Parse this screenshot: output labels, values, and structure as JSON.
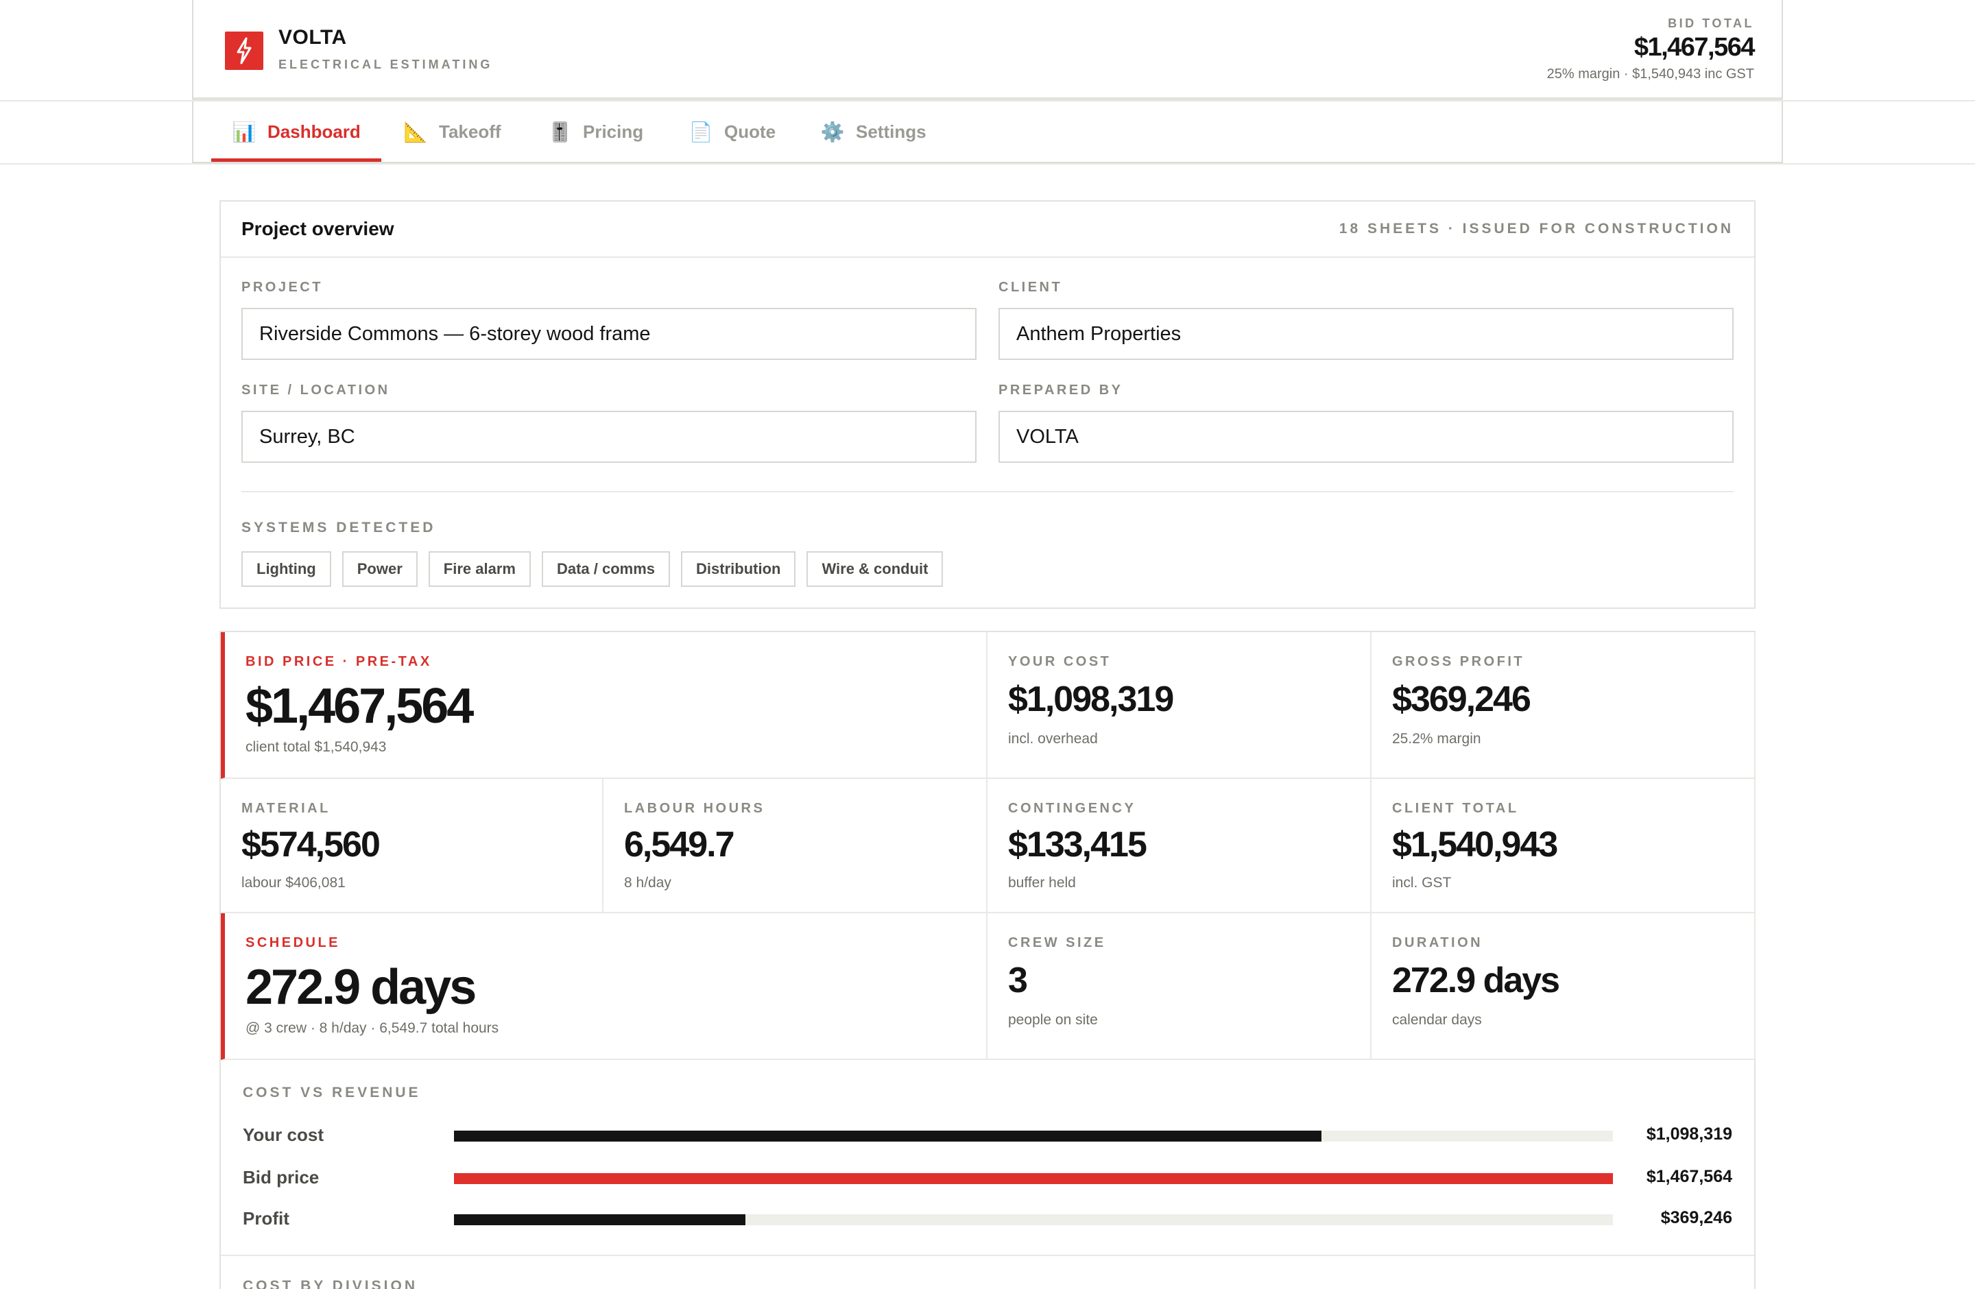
{
  "header": {
    "brand": "VOLTA",
    "subtitle": "ELECTRICAL ESTIMATING",
    "bid_label": "BID TOTAL",
    "bid_amount": "$1,467,564",
    "bid_note": "25% margin · $1,540,943 inc GST",
    "accent_color": "#e0302c"
  },
  "tabs": [
    {
      "label": "Dashboard",
      "icon": "bar-chart-icon",
      "glyph": "📊",
      "active": true
    },
    {
      "label": "Takeoff",
      "icon": "triangle-ruler-icon",
      "glyph": "📐",
      "active": false
    },
    {
      "label": "Pricing",
      "icon": "sliders-icon",
      "glyph": "🎚️",
      "active": false
    },
    {
      "label": "Quote",
      "icon": "document-icon",
      "glyph": "📄",
      "active": false
    },
    {
      "label": "Settings",
      "icon": "gear-icon",
      "glyph": "⚙️",
      "active": false
    }
  ],
  "overview": {
    "title": "Project overview",
    "meta": "18 SHEETS · ISSUED FOR CONSTRUCTION",
    "fields": {
      "project": {
        "label": "PROJECT",
        "value": "Riverside Commons — 6-storey wood frame"
      },
      "client": {
        "label": "CLIENT",
        "value": "Anthem Properties"
      },
      "site": {
        "label": "SITE / LOCATION",
        "value": "Surrey, BC"
      },
      "prepared": {
        "label": "PREPARED BY",
        "value": "VOLTA"
      }
    },
    "systems_label": "SYSTEMS DETECTED",
    "systems": [
      "Lighting",
      "Power",
      "Fire alarm",
      "Data / comms",
      "Distribution",
      "Wire & conduit"
    ]
  },
  "metrics": {
    "bid_price": {
      "label": "BID PRICE · PRE-TAX",
      "value": "$1,467,564",
      "sub": "client total $1,540,943"
    },
    "your_cost": {
      "label": "YOUR COST",
      "value": "$1,098,319",
      "sub": "incl. overhead"
    },
    "gross_profit": {
      "label": "GROSS PROFIT",
      "value": "$369,246",
      "sub": "25.2% margin"
    },
    "material": {
      "label": "MATERIAL",
      "value": "$574,560",
      "sub": "labour $406,081"
    },
    "labour_hours": {
      "label": "LABOUR HOURS",
      "value": "6,549.7",
      "sub": "8 h/day"
    },
    "contingency": {
      "label": "CONTINGENCY",
      "value": "$133,415",
      "sub": "buffer held"
    },
    "client_total": {
      "label": "CLIENT TOTAL",
      "value": "$1,540,943",
      "sub": "incl. GST"
    },
    "schedule": {
      "label": "SCHEDULE",
      "value": "272.9 days",
      "sub": "@ 3 crew · 8 h/day · 6,549.7 total hours"
    },
    "crew_size": {
      "label": "CREW SIZE",
      "value": "3",
      "sub": "people on site"
    },
    "duration": {
      "label": "DURATION",
      "value": "272.9 days",
      "sub": "calendar days"
    }
  },
  "cost_vs_revenue": {
    "label": "COST VS REVENUE",
    "bars": [
      {
        "name": "Your cost",
        "value_text": "$1,098,319",
        "value": 1098319,
        "color": "#141414"
      },
      {
        "name": "Bid price",
        "value_text": "$1,467,564",
        "value": 1467564,
        "color": "#e0302c"
      },
      {
        "name": "Profit",
        "value_text": "$369,246",
        "value": 369246,
        "color": "#141414"
      }
    ],
    "max": 1467564
  },
  "cost_by_division": {
    "label": "COST BY DIVISION"
  }
}
